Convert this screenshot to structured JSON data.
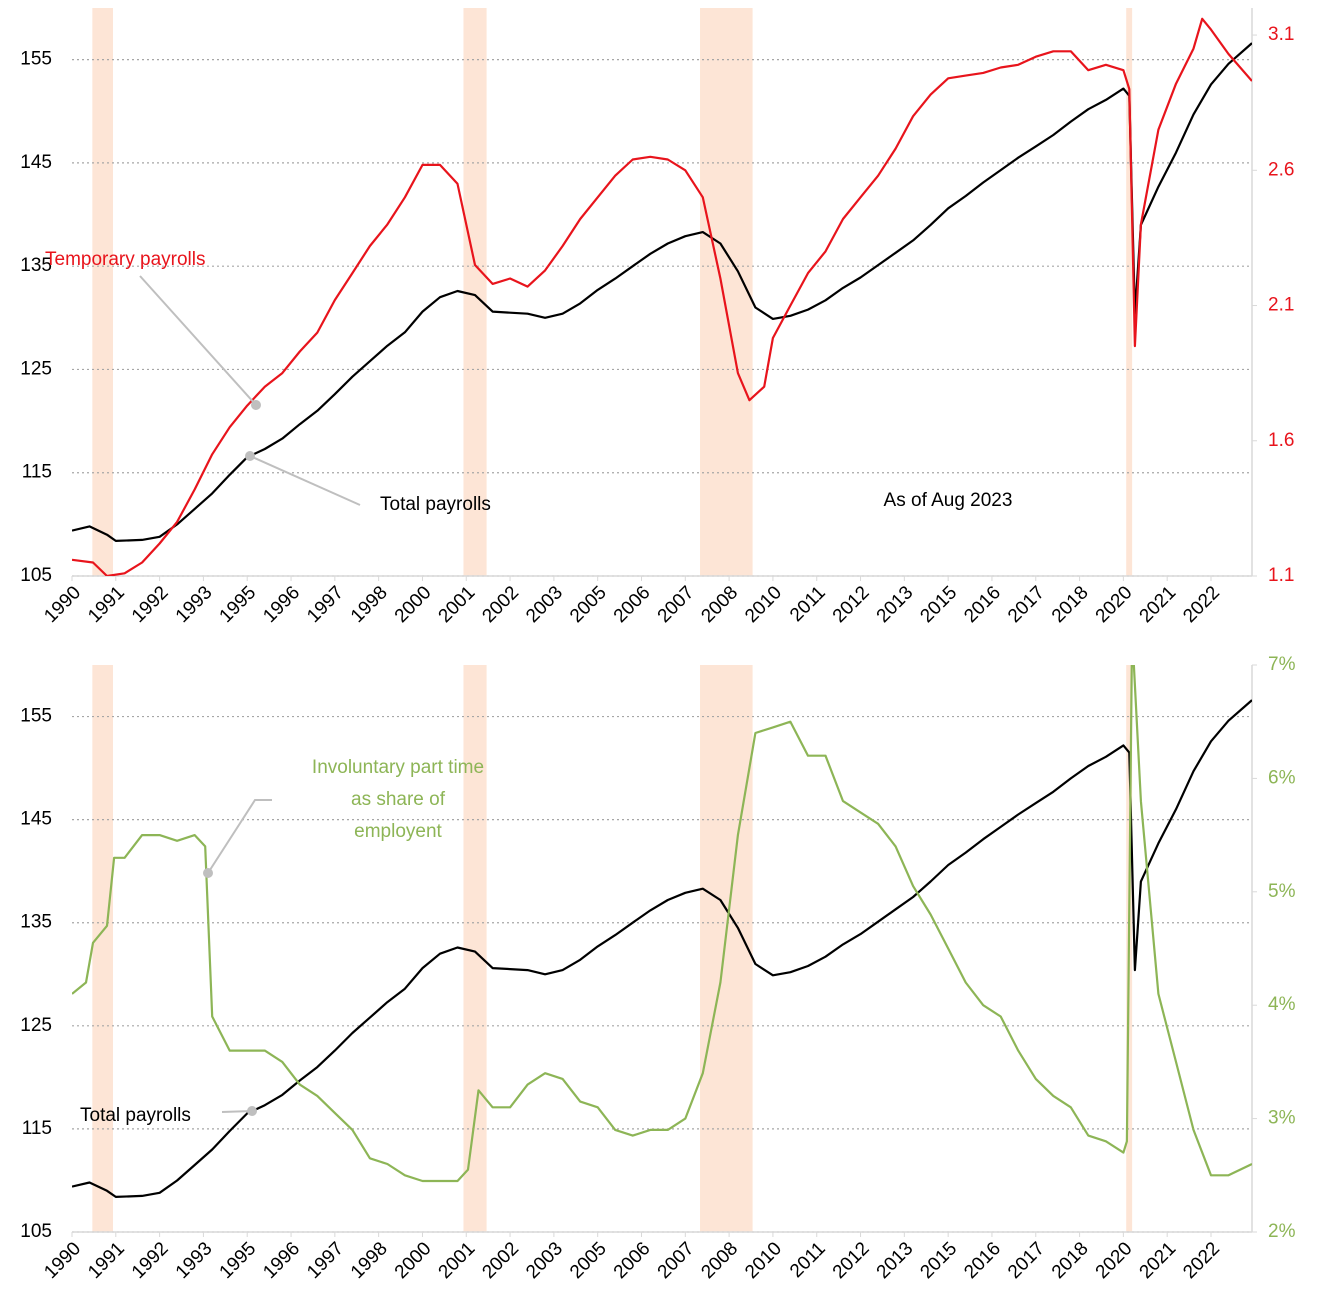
{
  "chart_data": [
    {
      "type": "line",
      "xlim": [
        1990,
        2023.67
      ],
      "xticks": [
        {
          "value": 1990,
          "label": "1990"
        },
        {
          "value": 1991.25,
          "label": "1991"
        },
        {
          "value": 1992.5,
          "label": "1992"
        },
        {
          "value": 1993.75,
          "label": "1993"
        },
        {
          "value": 1995,
          "label": "1995"
        },
        {
          "value": 1996.25,
          "label": "1996"
        },
        {
          "value": 1997.5,
          "label": "1997"
        },
        {
          "value": 1998.75,
          "label": "1998"
        },
        {
          "value": 2000,
          "label": "2000"
        },
        {
          "value": 2001.25,
          "label": "2001"
        },
        {
          "value": 2002.5,
          "label": "2002"
        },
        {
          "value": 2003.75,
          "label": "2003"
        },
        {
          "value": 2005,
          "label": "2005"
        },
        {
          "value": 2006.25,
          "label": "2006"
        },
        {
          "value": 2007.5,
          "label": "2007"
        },
        {
          "value": 2008.75,
          "label": "2008"
        },
        {
          "value": 2010,
          "label": "2010"
        },
        {
          "value": 2011.25,
          "label": "2011"
        },
        {
          "value": 2012.5,
          "label": "2012"
        },
        {
          "value": 2013.75,
          "label": "2013"
        },
        {
          "value": 2015,
          "label": "2015"
        },
        {
          "value": 2016.25,
          "label": "2016"
        },
        {
          "value": 2017.5,
          "label": "2017"
        },
        {
          "value": 2018.75,
          "label": "2018"
        },
        {
          "value": 2020,
          "label": "2020"
        },
        {
          "value": 2021.25,
          "label": "2021"
        },
        {
          "value": 2022.5,
          "label": "2022"
        }
      ],
      "ylim": [
        105,
        160
      ],
      "yticks": [
        105,
        115,
        125,
        135,
        145,
        155
      ],
      "y2lim": [
        1.1,
        3.2
      ],
      "y2ticks": [
        1.1,
        1.6,
        2.1,
        2.6,
        3.1
      ],
      "y2color": "#e8141c",
      "grid": true,
      "shaded_ranges": [
        [
          1990.58,
          1991.17
        ],
        [
          2001.17,
          2001.83
        ],
        [
          2007.92,
          2009.42
        ],
        [
          2020.08,
          2020.25
        ]
      ],
      "shade_color": "#fde5d6",
      "annotation": "As of Aug 2023",
      "series": [
        {
          "name": "Total payrolls",
          "color": "#000000",
          "x": [
            1990,
            1990.5,
            1991,
            1991.25,
            1992,
            1992.5,
            1993,
            1993.5,
            1994,
            1994.5,
            1995,
            1995.5,
            1996,
            1996.5,
            1997,
            1997.5,
            1998,
            1998.5,
            1999,
            1999.5,
            2000,
            2000.5,
            2001,
            2001.5,
            2002,
            2002.5,
            2003,
            2003.5,
            2004,
            2004.5,
            2005,
            2005.5,
            2006,
            2006.5,
            2007,
            2007.5,
            2008,
            2008.5,
            2009,
            2009.5,
            2010,
            2010.5,
            2011,
            2011.5,
            2012,
            2012.5,
            2013,
            2013.5,
            2014,
            2014.5,
            2015,
            2015.5,
            2016,
            2016.5,
            2017,
            2017.5,
            2018,
            2018.5,
            2019,
            2019.5,
            2020,
            2020.17,
            2020.33,
            2020.5,
            2021,
            2021.5,
            2022,
            2022.5,
            2023,
            2023.67
          ],
          "values": [
            109.4,
            109.8,
            109.0,
            108.4,
            108.5,
            108.8,
            110.0,
            111.5,
            113.0,
            114.8,
            116.5,
            117.3,
            118.3,
            119.7,
            121.0,
            122.6,
            124.3,
            125.8,
            127.3,
            128.6,
            130.6,
            132.0,
            132.6,
            132.2,
            130.6,
            130.5,
            130.4,
            130.0,
            130.4,
            131.4,
            132.7,
            133.8,
            135.0,
            136.2,
            137.2,
            137.9,
            138.3,
            137.2,
            134.5,
            131.0,
            129.9,
            130.2,
            130.8,
            131.7,
            132.9,
            133.9,
            135.1,
            136.3,
            137.5,
            139.0,
            140.6,
            141.8,
            143.1,
            144.3,
            145.5,
            146.6,
            147.7,
            149.0,
            150.2,
            151.1,
            152.2,
            151.5,
            130.4,
            139.0,
            142.7,
            146.0,
            149.7,
            152.6,
            154.6,
            156.6
          ]
        },
        {
          "name": "Temporary payrolls",
          "color": "#e8141c",
          "axis": "y2",
          "x": [
            1990,
            1990.6,
            1991,
            1991.5,
            1992,
            1992.5,
            1993,
            1993.5,
            1994,
            1994.5,
            1995,
            1995.5,
            1996,
            1996.5,
            1997,
            1997.5,
            1998,
            1998.5,
            1999,
            1999.5,
            2000,
            2000.5,
            2001,
            2001.5,
            2002,
            2002.5,
            2003,
            2003.5,
            2004,
            2004.5,
            2005,
            2005.5,
            2006,
            2006.5,
            2007,
            2007.5,
            2008,
            2008.5,
            2009,
            2009.33,
            2009.75,
            2010,
            2010.5,
            2011,
            2011.5,
            2012,
            2012.5,
            2013,
            2013.5,
            2014,
            2014.5,
            2015,
            2015.5,
            2016,
            2016.5,
            2017,
            2017.5,
            2018,
            2018.5,
            2019,
            2019.5,
            2020,
            2020.17,
            2020.33,
            2020.5,
            2021,
            2021.5,
            2022,
            2022.25,
            2022.5,
            2023,
            2023.67
          ],
          "values": [
            1.16,
            1.15,
            1.1,
            1.11,
            1.15,
            1.22,
            1.3,
            1.42,
            1.55,
            1.65,
            1.73,
            1.8,
            1.85,
            1.93,
            2.0,
            2.12,
            2.22,
            2.32,
            2.4,
            2.5,
            2.62,
            2.62,
            2.55,
            2.25,
            2.18,
            2.2,
            2.17,
            2.23,
            2.32,
            2.42,
            2.5,
            2.58,
            2.64,
            2.65,
            2.64,
            2.6,
            2.5,
            2.2,
            1.85,
            1.75,
            1.8,
            1.98,
            2.1,
            2.22,
            2.3,
            2.42,
            2.5,
            2.58,
            2.68,
            2.8,
            2.88,
            2.94,
            2.95,
            2.96,
            2.98,
            2.99,
            3.02,
            3.04,
            3.04,
            2.97,
            2.99,
            2.97,
            2.9,
            1.95,
            2.4,
            2.75,
            2.92,
            3.05,
            3.16,
            3.12,
            3.03,
            2.93
          ]
        }
      ]
    },
    {
      "type": "line",
      "xlim": [
        1990,
        2023.67
      ],
      "xticks": [
        {
          "value": 1990,
          "label": "1990"
        },
        {
          "value": 1991.25,
          "label": "1991"
        },
        {
          "value": 1992.5,
          "label": "1992"
        },
        {
          "value": 1993.75,
          "label": "1993"
        },
        {
          "value": 1995,
          "label": "1995"
        },
        {
          "value": 1996.25,
          "label": "1996"
        },
        {
          "value": 1997.5,
          "label": "1997"
        },
        {
          "value": 1998.75,
          "label": "1998"
        },
        {
          "value": 2000,
          "label": "2000"
        },
        {
          "value": 2001.25,
          "label": "2001"
        },
        {
          "value": 2002.5,
          "label": "2002"
        },
        {
          "value": 2003.75,
          "label": "2003"
        },
        {
          "value": 2005,
          "label": "2005"
        },
        {
          "value": 2006.25,
          "label": "2006"
        },
        {
          "value": 2007.5,
          "label": "2007"
        },
        {
          "value": 2008.75,
          "label": "2008"
        },
        {
          "value": 2010,
          "label": "2010"
        },
        {
          "value": 2011.25,
          "label": "2011"
        },
        {
          "value": 2012.5,
          "label": "2012"
        },
        {
          "value": 2013.75,
          "label": "2013"
        },
        {
          "value": 2015,
          "label": "2015"
        },
        {
          "value": 2016.25,
          "label": "2016"
        },
        {
          "value": 2017.5,
          "label": "2017"
        },
        {
          "value": 2018.75,
          "label": "2018"
        },
        {
          "value": 2020,
          "label": "2020"
        },
        {
          "value": 2021.25,
          "label": "2021"
        },
        {
          "value": 2022.5,
          "label": "2022"
        }
      ],
      "ylim": [
        105,
        160
      ],
      "yticks": [
        105,
        115,
        125,
        135,
        145,
        155
      ],
      "y2lim": [
        2,
        7
      ],
      "y2ticks": [
        {
          "value": 2,
          "label": "2%"
        },
        {
          "value": 3,
          "label": "3%"
        },
        {
          "value": 4,
          "label": "4%"
        },
        {
          "value": 5,
          "label": "5%"
        },
        {
          "value": 6,
          "label": "6%"
        },
        {
          "value": 7,
          "label": "7%"
        }
      ],
      "y2color": "#8db556",
      "grid": true,
      "shaded_ranges": [
        [
          1990.58,
          1991.17
        ],
        [
          2001.17,
          2001.83
        ],
        [
          2007.92,
          2009.42
        ],
        [
          2020.08,
          2020.25
        ]
      ],
      "shade_color": "#fde5d6",
      "series": [
        {
          "name": "Total payrolls",
          "color": "#000000",
          "x": [
            1990,
            1990.5,
            1991,
            1991.25,
            1992,
            1992.5,
            1993,
            1993.5,
            1994,
            1994.5,
            1995,
            1995.5,
            1996,
            1996.5,
            1997,
            1997.5,
            1998,
            1998.5,
            1999,
            1999.5,
            2000,
            2000.5,
            2001,
            2001.5,
            2002,
            2002.5,
            2003,
            2003.5,
            2004,
            2004.5,
            2005,
            2005.5,
            2006,
            2006.5,
            2007,
            2007.5,
            2008,
            2008.5,
            2009,
            2009.5,
            2010,
            2010.5,
            2011,
            2011.5,
            2012,
            2012.5,
            2013,
            2013.5,
            2014,
            2014.5,
            2015,
            2015.5,
            2016,
            2016.5,
            2017,
            2017.5,
            2018,
            2018.5,
            2019,
            2019.5,
            2020,
            2020.17,
            2020.33,
            2020.5,
            2021,
            2021.5,
            2022,
            2022.5,
            2023,
            2023.67
          ],
          "values": [
            109.4,
            109.8,
            109.0,
            108.4,
            108.5,
            108.8,
            110.0,
            111.5,
            113.0,
            114.8,
            116.5,
            117.3,
            118.3,
            119.7,
            121.0,
            122.6,
            124.3,
            125.8,
            127.3,
            128.6,
            130.6,
            132.0,
            132.6,
            132.2,
            130.6,
            130.5,
            130.4,
            130.0,
            130.4,
            131.4,
            132.7,
            133.8,
            135.0,
            136.2,
            137.2,
            137.9,
            138.3,
            137.2,
            134.5,
            131.0,
            129.9,
            130.2,
            130.8,
            131.7,
            132.9,
            133.9,
            135.1,
            136.3,
            137.5,
            139.0,
            140.6,
            141.8,
            143.1,
            144.3,
            145.5,
            146.6,
            147.7,
            149.0,
            150.2,
            151.1,
            152.2,
            151.5,
            130.4,
            139.0,
            142.7,
            146.0,
            149.7,
            152.6,
            154.6,
            156.6
          ]
        },
        {
          "name": [
            "Involuntary part time",
            "as share of",
            "employent"
          ],
          "color": "#8db556",
          "axis": "y2",
          "x": [
            1990,
            1990.4,
            1990.6,
            1991,
            1991.2,
            1991.5,
            1992,
            1992.5,
            1993,
            1993.5,
            1993.8,
            1994,
            1994.5,
            1995,
            1995.5,
            1996,
            1996.5,
            1997,
            1997.5,
            1998,
            1998.5,
            1999,
            1999.5,
            2000,
            2000.5,
            2001,
            2001.3,
            2001.6,
            2002,
            2002.5,
            2003,
            2003.5,
            2004,
            2004.5,
            2005,
            2005.5,
            2006,
            2006.5,
            2007,
            2007.5,
            2008,
            2008.5,
            2009,
            2009.5,
            2010,
            2010.5,
            2011,
            2011.5,
            2012,
            2012.5,
            2013,
            2013.5,
            2014,
            2014.5,
            2015,
            2015.5,
            2016,
            2016.5,
            2017,
            2017.5,
            2018,
            2018.5,
            2019,
            2019.5,
            2020,
            2020.1,
            2020.25,
            2020.5,
            2021,
            2021.5,
            2022,
            2022.5,
            2023,
            2023.67
          ],
          "values": [
            4.1,
            4.2,
            4.55,
            4.7,
            5.3,
            5.3,
            5.5,
            5.5,
            5.45,
            5.5,
            5.4,
            3.9,
            3.6,
            3.6,
            3.6,
            3.5,
            3.3,
            3.2,
            3.05,
            2.9,
            2.65,
            2.6,
            2.5,
            2.45,
            2.45,
            2.45,
            2.55,
            3.25,
            3.1,
            3.1,
            3.3,
            3.4,
            3.35,
            3.15,
            3.1,
            2.9,
            2.85,
            2.9,
            2.9,
            3.0,
            3.4,
            4.2,
            5.5,
            6.4,
            6.45,
            6.5,
            6.2,
            6.2,
            5.8,
            5.7,
            5.6,
            5.4,
            5.05,
            4.8,
            4.5,
            4.2,
            4.0,
            3.9,
            3.6,
            3.35,
            3.2,
            3.1,
            2.85,
            2.8,
            2.7,
            2.8,
            7.3,
            5.8,
            4.1,
            3.5,
            2.9,
            2.5,
            2.5,
            2.6
          ]
        }
      ]
    }
  ]
}
